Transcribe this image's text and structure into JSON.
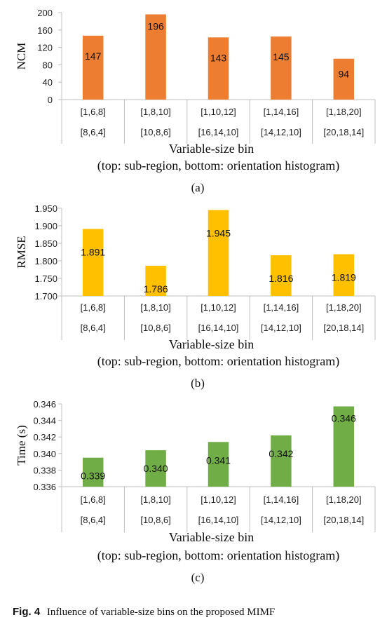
{
  "chart_data": [
    {
      "type": "bar",
      "panel_label": "(a)",
      "ylabel": "NCM",
      "xlabel": "Variable-size bin",
      "xlabel2": "(top: sub-region, bottom: orientation histogram)",
      "categories_top": [
        "[1,6,8]",
        "[1,8,10]",
        "[1,10,12]",
        "[1,14,16]",
        "[1,18,20]"
      ],
      "categories_bottom": [
        "[8,6,4]",
        "[10,8,6]",
        "[16,14,10]",
        "[14,12,10]",
        "[20,18,14]"
      ],
      "values": [
        147,
        196,
        143,
        145,
        94
      ],
      "data_labels": [
        "147",
        "196",
        "143",
        "145",
        "94"
      ],
      "yticks": [
        "0",
        "40",
        "80",
        "120",
        "160",
        "200"
      ],
      "ylim": [
        0,
        200
      ],
      "color": "#ED7D31"
    },
    {
      "type": "bar",
      "panel_label": "(b)",
      "ylabel": "RMSE",
      "xlabel": "Variable-size bin",
      "xlabel2": "(top: sub-region, bottom: orientation histogram)",
      "categories_top": [
        "[1,6,8]",
        "[1,8,10]",
        "[1,10,12]",
        "[1,14,16]",
        "[1,18,20]"
      ],
      "categories_bottom": [
        "[8,6,4]",
        "[10,8,6]",
        "[16,14,10]",
        "[14,12,10]",
        "[20,18,14]"
      ],
      "values": [
        1.891,
        1.786,
        1.945,
        1.816,
        1.819
      ],
      "data_labels": [
        "1.891",
        "1.786",
        "1.945",
        "1.816",
        "1.819"
      ],
      "yticks": [
        "1.700",
        "1.750",
        "1.800",
        "1.850",
        "1.900",
        "1.950"
      ],
      "ylim": [
        1.7,
        1.95
      ],
      "color": "#FFC000"
    },
    {
      "type": "bar",
      "panel_label": "(c)",
      "ylabel": "Time (s)",
      "xlabel": "Variable-size bin",
      "xlabel2": "(top: sub-region, bottom: orientation histogram)",
      "categories_top": [
        "[1,6,8]",
        "[1,8,10]",
        "[1,10,12]",
        "[1,14,16]",
        "[1,18,20]"
      ],
      "categories_bottom": [
        "[8,6,4]",
        "[10,8,6]",
        "[16,14,10]",
        "[14,12,10]",
        "[20,18,14]"
      ],
      "values": [
        0.3395,
        0.3404,
        0.3414,
        0.3422,
        0.3457
      ],
      "data_labels": [
        "0.339",
        "0.340",
        "0.341",
        "0.342",
        "0.346"
      ],
      "yticks": [
        "0.336",
        "0.338",
        "0.340",
        "0.342",
        "0.344",
        "0.346"
      ],
      "ylim": [
        0.336,
        0.346
      ],
      "color": "#70AD47"
    }
  ],
  "caption": {
    "label": "Fig. 4",
    "text": "Influence of variable-size bins on the proposed MIMF"
  }
}
